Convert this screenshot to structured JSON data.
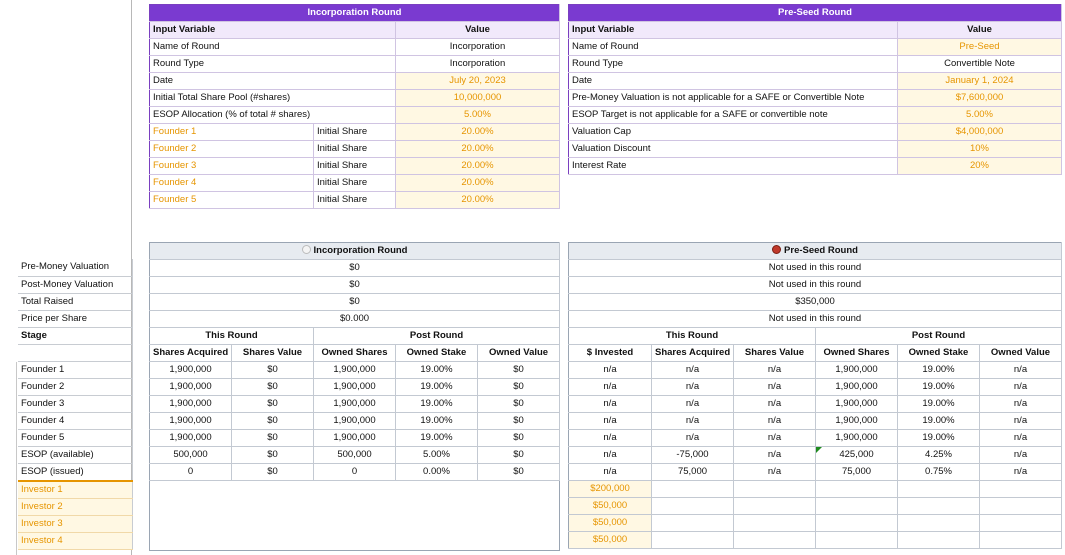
{
  "incorporation_input": {
    "title": "Incorporation Round",
    "col_variable": "Input Variable",
    "col_value": "Value",
    "rows": [
      {
        "label": "Name of Round",
        "value": "Incorporation"
      },
      {
        "label": "Round Type",
        "value": "Incorporation"
      },
      {
        "label": "Date",
        "value": "July 20, 2023"
      },
      {
        "label": "Initial Total Share Pool (#shares)",
        "value": "10,000,000"
      },
      {
        "label": "ESOP Allocation (% of total # shares)",
        "value": "5.00%"
      }
    ],
    "founders": [
      {
        "name": "Founder 1",
        "type": "Initial Share",
        "value": "20.00%"
      },
      {
        "name": "Founder 2",
        "type": "Initial Share",
        "value": "20.00%"
      },
      {
        "name": "Founder 3",
        "type": "Initial Share",
        "value": "20.00%"
      },
      {
        "name": "Founder 4",
        "type": "Initial Share",
        "value": "20.00%"
      },
      {
        "name": "Founder 5",
        "type": "Initial Share",
        "value": "20.00%"
      }
    ]
  },
  "preseed_input": {
    "title": "Pre-Seed Round",
    "col_variable": "Input Variable",
    "col_value": "Value",
    "rows": [
      {
        "label": "Name of Round",
        "value": "Pre-Seed"
      },
      {
        "label": "Round Type",
        "value": "Convertible Note"
      },
      {
        "label": "Date",
        "value": "January 1, 2024"
      },
      {
        "label": "Pre-Money Valuation is not applicable for a SAFE or Convertible Note",
        "value": "$7,600,000"
      },
      {
        "label": "ESOP Target is not applicable for a SAFE or convertible note",
        "value": "5.00%"
      },
      {
        "label": "Valuation Cap",
        "value": "$4,000,000"
      },
      {
        "label": "Valuation Discount",
        "value": "10%"
      },
      {
        "label": "Interest Rate",
        "value": "20%"
      }
    ]
  },
  "left_labels": {
    "summary": [
      "Pre-Money Valuation",
      "Post-Money Valuation",
      "Total Raised",
      "Price per Share"
    ],
    "stage": "Stage",
    "holders": [
      "Founder 1",
      "Founder 2",
      "Founder 3",
      "Founder 4",
      "Founder 5",
      "ESOP (available)",
      "ESOP (issued)"
    ],
    "investors": [
      "Investor 1",
      "Investor 2",
      "Investor 3",
      "Investor 4"
    ]
  },
  "incorporation_result": {
    "title": "Incorporation Round",
    "summary": [
      "$0",
      "$0",
      "$0",
      "$0.000"
    ],
    "this_round": "This Round",
    "post_round": "Post Round",
    "columns": [
      "Shares Acquired",
      "Shares Value",
      "Owned Shares",
      "Owned Stake",
      "Owned Value"
    ],
    "rows": [
      [
        "1,900,000",
        "$0",
        "1,900,000",
        "19.00%",
        "$0"
      ],
      [
        "1,900,000",
        "$0",
        "1,900,000",
        "19.00%",
        "$0"
      ],
      [
        "1,900,000",
        "$0",
        "1,900,000",
        "19.00%",
        "$0"
      ],
      [
        "1,900,000",
        "$0",
        "1,900,000",
        "19.00%",
        "$0"
      ],
      [
        "1,900,000",
        "$0",
        "1,900,000",
        "19.00%",
        "$0"
      ],
      [
        "500,000",
        "$0",
        "500,000",
        "5.00%",
        "$0"
      ],
      [
        "0",
        "$0",
        "0",
        "0.00%",
        "$0"
      ]
    ]
  },
  "preseed_result": {
    "title": "Pre-Seed Round",
    "summary": [
      "Not used in this round",
      "Not used in this round",
      "$350,000",
      "Not used in this round"
    ],
    "this_round": "This Round",
    "post_round": "Post Round",
    "columns": [
      "$ Invested",
      "Shares Acquired",
      "Shares Value",
      "Owned Shares",
      "Owned Stake",
      "Owned Value"
    ],
    "rows": [
      [
        "n/a",
        "n/a",
        "n/a",
        "1,900,000",
        "19.00%",
        "n/a"
      ],
      [
        "n/a",
        "n/a",
        "n/a",
        "1,900,000",
        "19.00%",
        "n/a"
      ],
      [
        "n/a",
        "n/a",
        "n/a",
        "1,900,000",
        "19.00%",
        "n/a"
      ],
      [
        "n/a",
        "n/a",
        "n/a",
        "1,900,000",
        "19.00%",
        "n/a"
      ],
      [
        "n/a",
        "n/a",
        "n/a",
        "1,900,000",
        "19.00%",
        "n/a"
      ],
      [
        "n/a",
        "-75,000",
        "n/a",
        "425,000",
        "4.25%",
        "n/a"
      ],
      [
        "n/a",
        "75,000",
        "n/a",
        "75,000",
        "0.75%",
        "n/a"
      ]
    ],
    "investments": [
      "$200,000",
      "$50,000",
      "$50,000",
      "$50,000"
    ]
  },
  "colors": {
    "purple": "#7a3ad0",
    "orange": "#e69500",
    "grid": "#c3c9d2"
  }
}
